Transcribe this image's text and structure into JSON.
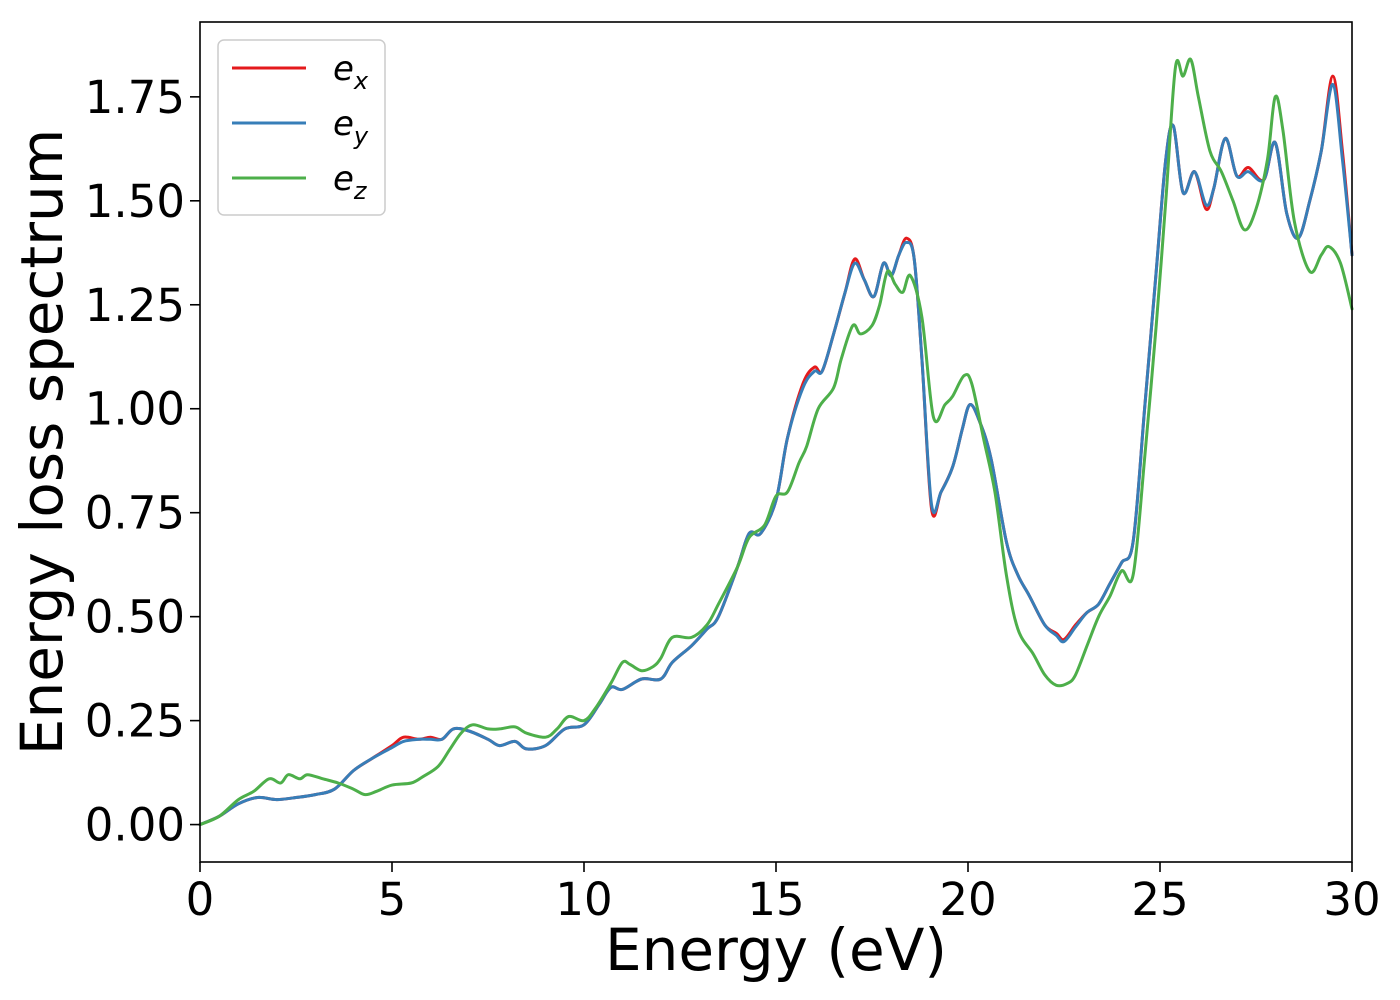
{
  "chart_data": {
    "type": "line",
    "xlabel": "Energy (eV)",
    "ylabel": "Energy loss spectrum",
    "xlim": [
      0,
      30
    ],
    "ylim": [
      -0.09,
      1.93
    ],
    "xticks": [
      0,
      5,
      10,
      15,
      20,
      25,
      30
    ],
    "xtick_labels": [
      "0",
      "5",
      "10",
      "15",
      "20",
      "25",
      "30"
    ],
    "yticks": [
      0.0,
      0.25,
      0.5,
      0.75,
      1.0,
      1.25,
      1.5,
      1.75
    ],
    "ytick_labels": [
      "0.00",
      "0.25",
      "0.50",
      "0.75",
      "1.00",
      "1.25",
      "1.50",
      "1.75"
    ],
    "grid": false,
    "legend_position": "top-left",
    "series": [
      {
        "name": "e",
        "subscript": "x",
        "color": "#e41a1c",
        "points": [
          [
            0,
            0
          ],
          [
            0.5,
            0.02
          ],
          [
            1,
            0.05
          ],
          [
            1.5,
            0.065
          ],
          [
            2,
            0.06
          ],
          [
            2.5,
            0.065
          ],
          [
            3,
            0.072
          ],
          [
            3.5,
            0.085
          ],
          [
            4,
            0.13
          ],
          [
            4.5,
            0.16
          ],
          [
            5,
            0.19
          ],
          [
            5.3,
            0.21
          ],
          [
            5.7,
            0.205
          ],
          [
            6,
            0.21
          ],
          [
            6.3,
            0.205
          ],
          [
            6.6,
            0.23
          ],
          [
            7,
            0.225
          ],
          [
            7.5,
            0.205
          ],
          [
            7.8,
            0.19
          ],
          [
            8.2,
            0.2
          ],
          [
            8.5,
            0.182
          ],
          [
            9,
            0.19
          ],
          [
            9.5,
            0.23
          ],
          [
            10,
            0.24
          ],
          [
            10.4,
            0.29
          ],
          [
            10.7,
            0.33
          ],
          [
            11,
            0.325
          ],
          [
            11.5,
            0.35
          ],
          [
            12,
            0.35
          ],
          [
            12.3,
            0.39
          ],
          [
            12.8,
            0.43
          ],
          [
            13.2,
            0.47
          ],
          [
            13.5,
            0.5
          ],
          [
            14,
            0.62
          ],
          [
            14.3,
            0.7
          ],
          [
            14.6,
            0.7
          ],
          [
            15,
            0.78
          ],
          [
            15.3,
            0.93
          ],
          [
            15.7,
            1.06
          ],
          [
            16,
            1.1
          ],
          [
            16.2,
            1.09
          ],
          [
            16.5,
            1.18
          ],
          [
            16.8,
            1.28
          ],
          [
            17.05,
            1.36
          ],
          [
            17.3,
            1.31
          ],
          [
            17.55,
            1.27
          ],
          [
            17.8,
            1.35
          ],
          [
            18,
            1.32
          ],
          [
            18.2,
            1.37
          ],
          [
            18.4,
            1.41
          ],
          [
            18.6,
            1.36
          ],
          [
            18.8,
            1.12
          ],
          [
            19.05,
            0.76
          ],
          [
            19.3,
            0.8
          ],
          [
            19.6,
            0.86
          ],
          [
            19.85,
            0.95
          ],
          [
            20.05,
            1.01
          ],
          [
            20.3,
            0.97
          ],
          [
            20.6,
            0.88
          ],
          [
            21,
            0.68
          ],
          [
            21.3,
            0.6
          ],
          [
            21.6,
            0.55
          ],
          [
            22,
            0.48
          ],
          [
            22.3,
            0.46
          ],
          [
            22.5,
            0.445
          ],
          [
            22.8,
            0.48
          ],
          [
            23.1,
            0.51
          ],
          [
            23.4,
            0.53
          ],
          [
            23.7,
            0.58
          ],
          [
            24,
            0.63
          ],
          [
            24.3,
            0.68
          ],
          [
            24.6,
            1.0
          ],
          [
            24.9,
            1.33
          ],
          [
            25.15,
            1.6
          ],
          [
            25.35,
            1.68
          ],
          [
            25.6,
            1.52
          ],
          [
            25.9,
            1.57
          ],
          [
            26.2,
            1.48
          ],
          [
            26.4,
            1.53
          ],
          [
            26.7,
            1.65
          ],
          [
            27,
            1.56
          ],
          [
            27.3,
            1.58
          ],
          [
            27.7,
            1.55
          ],
          [
            28,
            1.64
          ],
          [
            28.3,
            1.47
          ],
          [
            28.6,
            1.41
          ],
          [
            28.9,
            1.5
          ],
          [
            29.2,
            1.62
          ],
          [
            29.5,
            1.8
          ],
          [
            29.75,
            1.62
          ],
          [
            30,
            1.37
          ]
        ]
      },
      {
        "name": "e",
        "subscript": "y",
        "color": "#377eb8",
        "points": [
          [
            0,
            0
          ],
          [
            0.5,
            0.02
          ],
          [
            1,
            0.05
          ],
          [
            1.5,
            0.065
          ],
          [
            2,
            0.06
          ],
          [
            2.5,
            0.065
          ],
          [
            3,
            0.072
          ],
          [
            3.5,
            0.085
          ],
          [
            4,
            0.13
          ],
          [
            4.5,
            0.16
          ],
          [
            5,
            0.185
          ],
          [
            5.3,
            0.2
          ],
          [
            5.7,
            0.205
          ],
          [
            6,
            0.205
          ],
          [
            6.3,
            0.205
          ],
          [
            6.6,
            0.23
          ],
          [
            7,
            0.225
          ],
          [
            7.5,
            0.205
          ],
          [
            7.8,
            0.19
          ],
          [
            8.2,
            0.2
          ],
          [
            8.5,
            0.182
          ],
          [
            9,
            0.19
          ],
          [
            9.5,
            0.23
          ],
          [
            10,
            0.24
          ],
          [
            10.4,
            0.29
          ],
          [
            10.7,
            0.33
          ],
          [
            11,
            0.325
          ],
          [
            11.5,
            0.35
          ],
          [
            12,
            0.35
          ],
          [
            12.3,
            0.39
          ],
          [
            12.8,
            0.43
          ],
          [
            13.2,
            0.47
          ],
          [
            13.5,
            0.5
          ],
          [
            14,
            0.62
          ],
          [
            14.3,
            0.7
          ],
          [
            14.6,
            0.7
          ],
          [
            15,
            0.78
          ],
          [
            15.3,
            0.93
          ],
          [
            15.7,
            1.05
          ],
          [
            16,
            1.09
          ],
          [
            16.2,
            1.09
          ],
          [
            16.5,
            1.18
          ],
          [
            16.8,
            1.28
          ],
          [
            17.05,
            1.35
          ],
          [
            17.3,
            1.31
          ],
          [
            17.55,
            1.27
          ],
          [
            17.8,
            1.35
          ],
          [
            18,
            1.32
          ],
          [
            18.2,
            1.37
          ],
          [
            18.4,
            1.4
          ],
          [
            18.6,
            1.36
          ],
          [
            18.8,
            1.12
          ],
          [
            19.05,
            0.77
          ],
          [
            19.3,
            0.8
          ],
          [
            19.6,
            0.86
          ],
          [
            19.85,
            0.95
          ],
          [
            20.05,
            1.01
          ],
          [
            20.3,
            0.97
          ],
          [
            20.6,
            0.88
          ],
          [
            21,
            0.68
          ],
          [
            21.3,
            0.6
          ],
          [
            21.6,
            0.55
          ],
          [
            22,
            0.48
          ],
          [
            22.3,
            0.455
          ],
          [
            22.5,
            0.44
          ],
          [
            22.8,
            0.475
          ],
          [
            23.1,
            0.51
          ],
          [
            23.4,
            0.53
          ],
          [
            23.7,
            0.58
          ],
          [
            24,
            0.63
          ],
          [
            24.3,
            0.68
          ],
          [
            24.6,
            1.0
          ],
          [
            24.9,
            1.33
          ],
          [
            25.15,
            1.6
          ],
          [
            25.35,
            1.68
          ],
          [
            25.6,
            1.52
          ],
          [
            25.9,
            1.57
          ],
          [
            26.2,
            1.49
          ],
          [
            26.4,
            1.53
          ],
          [
            26.7,
            1.65
          ],
          [
            27,
            1.56
          ],
          [
            27.3,
            1.57
          ],
          [
            27.7,
            1.55
          ],
          [
            28,
            1.64
          ],
          [
            28.3,
            1.47
          ],
          [
            28.6,
            1.41
          ],
          [
            28.9,
            1.5
          ],
          [
            29.2,
            1.62
          ],
          [
            29.5,
            1.78
          ],
          [
            29.75,
            1.6
          ],
          [
            30,
            1.37
          ]
        ]
      },
      {
        "name": "e",
        "subscript": "z",
        "color": "#4daf4a",
        "points": [
          [
            0,
            0
          ],
          [
            0.5,
            0.02
          ],
          [
            1,
            0.06
          ],
          [
            1.4,
            0.08
          ],
          [
            1.8,
            0.11
          ],
          [
            2.1,
            0.1
          ],
          [
            2.3,
            0.12
          ],
          [
            2.6,
            0.11
          ],
          [
            2.8,
            0.12
          ],
          [
            3.2,
            0.11
          ],
          [
            3.6,
            0.1
          ],
          [
            4,
            0.085
          ],
          [
            4.3,
            0.072
          ],
          [
            4.6,
            0.08
          ],
          [
            5,
            0.095
          ],
          [
            5.5,
            0.1
          ],
          [
            5.8,
            0.115
          ],
          [
            6.2,
            0.14
          ],
          [
            6.5,
            0.18
          ],
          [
            6.8,
            0.22
          ],
          [
            7.1,
            0.24
          ],
          [
            7.5,
            0.23
          ],
          [
            7.8,
            0.23
          ],
          [
            8.2,
            0.235
          ],
          [
            8.5,
            0.22
          ],
          [
            9,
            0.21
          ],
          [
            9.3,
            0.23
          ],
          [
            9.6,
            0.26
          ],
          [
            10,
            0.25
          ],
          [
            10.3,
            0.28
          ],
          [
            10.7,
            0.34
          ],
          [
            11,
            0.39
          ],
          [
            11.2,
            0.385
          ],
          [
            11.5,
            0.37
          ],
          [
            11.8,
            0.38
          ],
          [
            12,
            0.4
          ],
          [
            12.3,
            0.45
          ],
          [
            12.8,
            0.45
          ],
          [
            13.2,
            0.48
          ],
          [
            13.5,
            0.53
          ],
          [
            14,
            0.62
          ],
          [
            14.3,
            0.69
          ],
          [
            14.7,
            0.72
          ],
          [
            15,
            0.79
          ],
          [
            15.3,
            0.8
          ],
          [
            15.6,
            0.87
          ],
          [
            15.8,
            0.91
          ],
          [
            16.1,
            1.0
          ],
          [
            16.5,
            1.05
          ],
          [
            16.7,
            1.12
          ],
          [
            17,
            1.2
          ],
          [
            17.2,
            1.18
          ],
          [
            17.5,
            1.2
          ],
          [
            17.7,
            1.25
          ],
          [
            17.9,
            1.33
          ],
          [
            18.1,
            1.3
          ],
          [
            18.3,
            1.28
          ],
          [
            18.5,
            1.32
          ],
          [
            18.8,
            1.22
          ],
          [
            19.1,
            0.98
          ],
          [
            19.4,
            1.01
          ],
          [
            19.6,
            1.03
          ],
          [
            19.9,
            1.08
          ],
          [
            20.1,
            1.06
          ],
          [
            20.4,
            0.93
          ],
          [
            20.7,
            0.8
          ],
          [
            21,
            0.6
          ],
          [
            21.3,
            0.47
          ],
          [
            21.7,
            0.41
          ],
          [
            22,
            0.36
          ],
          [
            22.3,
            0.335
          ],
          [
            22.6,
            0.34
          ],
          [
            22.8,
            0.36
          ],
          [
            23.1,
            0.43
          ],
          [
            23.4,
            0.5
          ],
          [
            23.7,
            0.55
          ],
          [
            24,
            0.61
          ],
          [
            24.3,
            0.6
          ],
          [
            24.6,
            0.88
          ],
          [
            24.9,
            1.2
          ],
          [
            25.15,
            1.5
          ],
          [
            25.4,
            1.82
          ],
          [
            25.6,
            1.8
          ],
          [
            25.8,
            1.84
          ],
          [
            26,
            1.75
          ],
          [
            26.3,
            1.62
          ],
          [
            26.6,
            1.57
          ],
          [
            26.9,
            1.5
          ],
          [
            27.2,
            1.43
          ],
          [
            27.5,
            1.48
          ],
          [
            27.8,
            1.6
          ],
          [
            28,
            1.75
          ],
          [
            28.2,
            1.67
          ],
          [
            28.5,
            1.45
          ],
          [
            28.9,
            1.33
          ],
          [
            29.2,
            1.37
          ],
          [
            29.4,
            1.39
          ],
          [
            29.7,
            1.35
          ],
          [
            30,
            1.24
          ]
        ]
      }
    ]
  }
}
